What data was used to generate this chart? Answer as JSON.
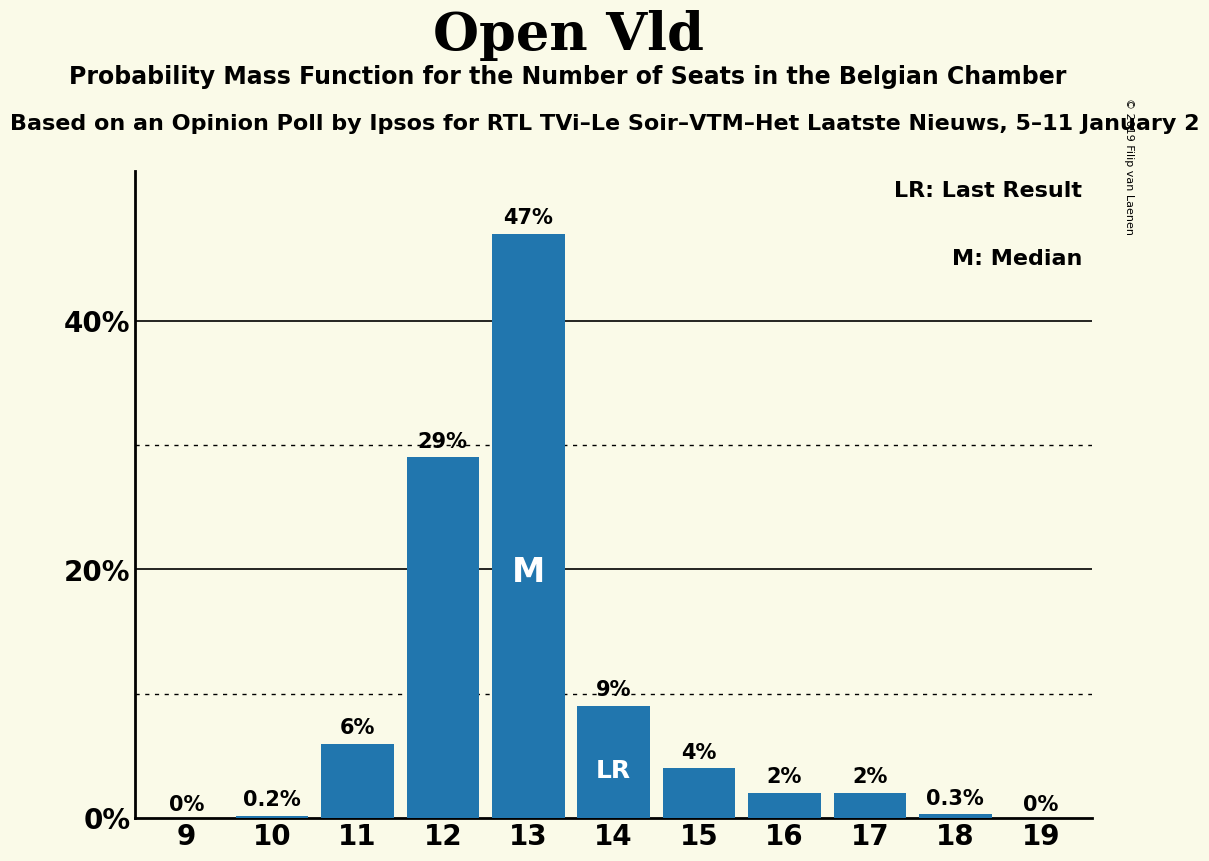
{
  "title": "Open Vld",
  "subtitle": "Probability Mass Function for the Number of Seats in the Belgian Chamber",
  "subtitle2": "Based on an Opinion Poll by Ipsos for RTL TVi–Le Soir–VTM–Het Laatste Nieuws, 5–11 January 2",
  "copyright": "© 2019 Filip van Laenen",
  "seats": [
    9,
    10,
    11,
    12,
    13,
    14,
    15,
    16,
    17,
    18,
    19
  ],
  "probabilities": [
    0.0,
    0.2,
    6.0,
    29.0,
    47.0,
    9.0,
    4.0,
    2.0,
    2.0,
    0.3,
    0.0
  ],
  "bar_labels": [
    "0%",
    "0.2%",
    "6%",
    "29%",
    "47%",
    "9%",
    "4%",
    "2%",
    "2%",
    "0.3%",
    "0%"
  ],
  "show_label": [
    true,
    true,
    true,
    true,
    true,
    true,
    true,
    true,
    true,
    true,
    true
  ],
  "median_seat": 13,
  "lr_seat": 14,
  "bar_color": "#2176AE",
  "background_color": "#FAFAE8",
  "text_color": "#000000",
  "ylabel_ticks": [
    0,
    20,
    40
  ],
  "dotted_lines": [
    10,
    30
  ],
  "ylim": [
    0,
    52
  ],
  "legend_lr": "LR: Last Result",
  "legend_m": "M: Median"
}
